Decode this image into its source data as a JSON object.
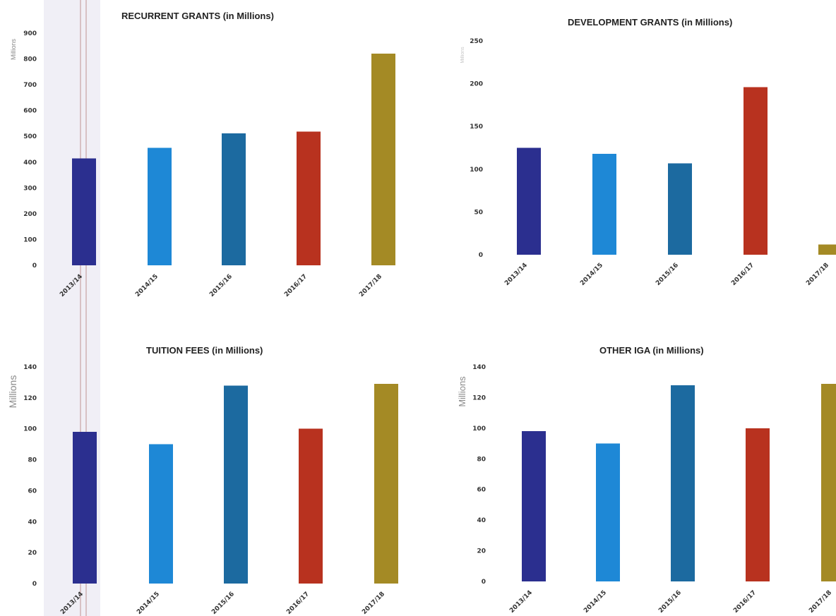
{
  "chart_data": [
    {
      "type": "bar",
      "title": "RECURRENT GRANTS (in Millions)",
      "ylabel": "Millions",
      "categories": [
        "2013/14",
        "2014/15",
        "2015/16",
        "2016/17",
        "2017/18"
      ],
      "values": [
        415,
        455,
        512,
        518,
        820
      ],
      "ylim": [
        0,
        900
      ],
      "yticks": [
        "0",
        "100",
        "200",
        "300",
        "400",
        "500",
        "600",
        "700",
        "800",
        "900"
      ],
      "grid": false,
      "colors": [
        "#2b2f8f",
        "#1e88d6",
        "#1c6aa0",
        "#b8321f",
        "#a48a25"
      ]
    },
    {
      "type": "bar",
      "title": "DEVELOPMENT GRANTS (in Millions)",
      "ylabel": "Millions",
      "categories": [
        "2013/14",
        "2014/15",
        "2015/16",
        "2016/17",
        "2017/18"
      ],
      "values": [
        125,
        118,
        107,
        196,
        12
      ],
      "ylim": [
        0,
        250
      ],
      "yticks": [
        "0",
        "50",
        "100",
        "150",
        "200",
        "250"
      ],
      "grid": false,
      "colors": [
        "#2b2f8f",
        "#1e88d6",
        "#1c6aa0",
        "#b8321f",
        "#a48a25"
      ]
    },
    {
      "type": "bar",
      "title": "TUITION FEES (in Millions)",
      "ylabel": "Millions",
      "categories": [
        "2013/14",
        "2014/15",
        "2015/16",
        "2016/17",
        "2017/18"
      ],
      "values": [
        98,
        90,
        128,
        100,
        129
      ],
      "ylim": [
        0,
        140
      ],
      "yticks": [
        "0",
        "20",
        "40",
        "60",
        "80",
        "100",
        "120",
        "140"
      ],
      "grid": false,
      "colors": [
        "#2b2f8f",
        "#1e88d6",
        "#1c6aa0",
        "#b8321f",
        "#a48a25"
      ]
    },
    {
      "type": "bar",
      "title": "OTHER IGA (in Millions)",
      "ylabel": "Millions",
      "categories": [
        "2013/14",
        "2014/15",
        "2015/16",
        "2016/17",
        "2017/18"
      ],
      "values": [
        98,
        90,
        128,
        100,
        129
      ],
      "ylim": [
        0,
        140
      ],
      "yticks": [
        "0",
        "20",
        "40",
        "60",
        "80",
        "100",
        "120",
        "140"
      ],
      "grid": false,
      "colors": [
        "#2b2f8f",
        "#1e88d6",
        "#1c6aa0",
        "#b8321f",
        "#a48a25"
      ]
    }
  ]
}
